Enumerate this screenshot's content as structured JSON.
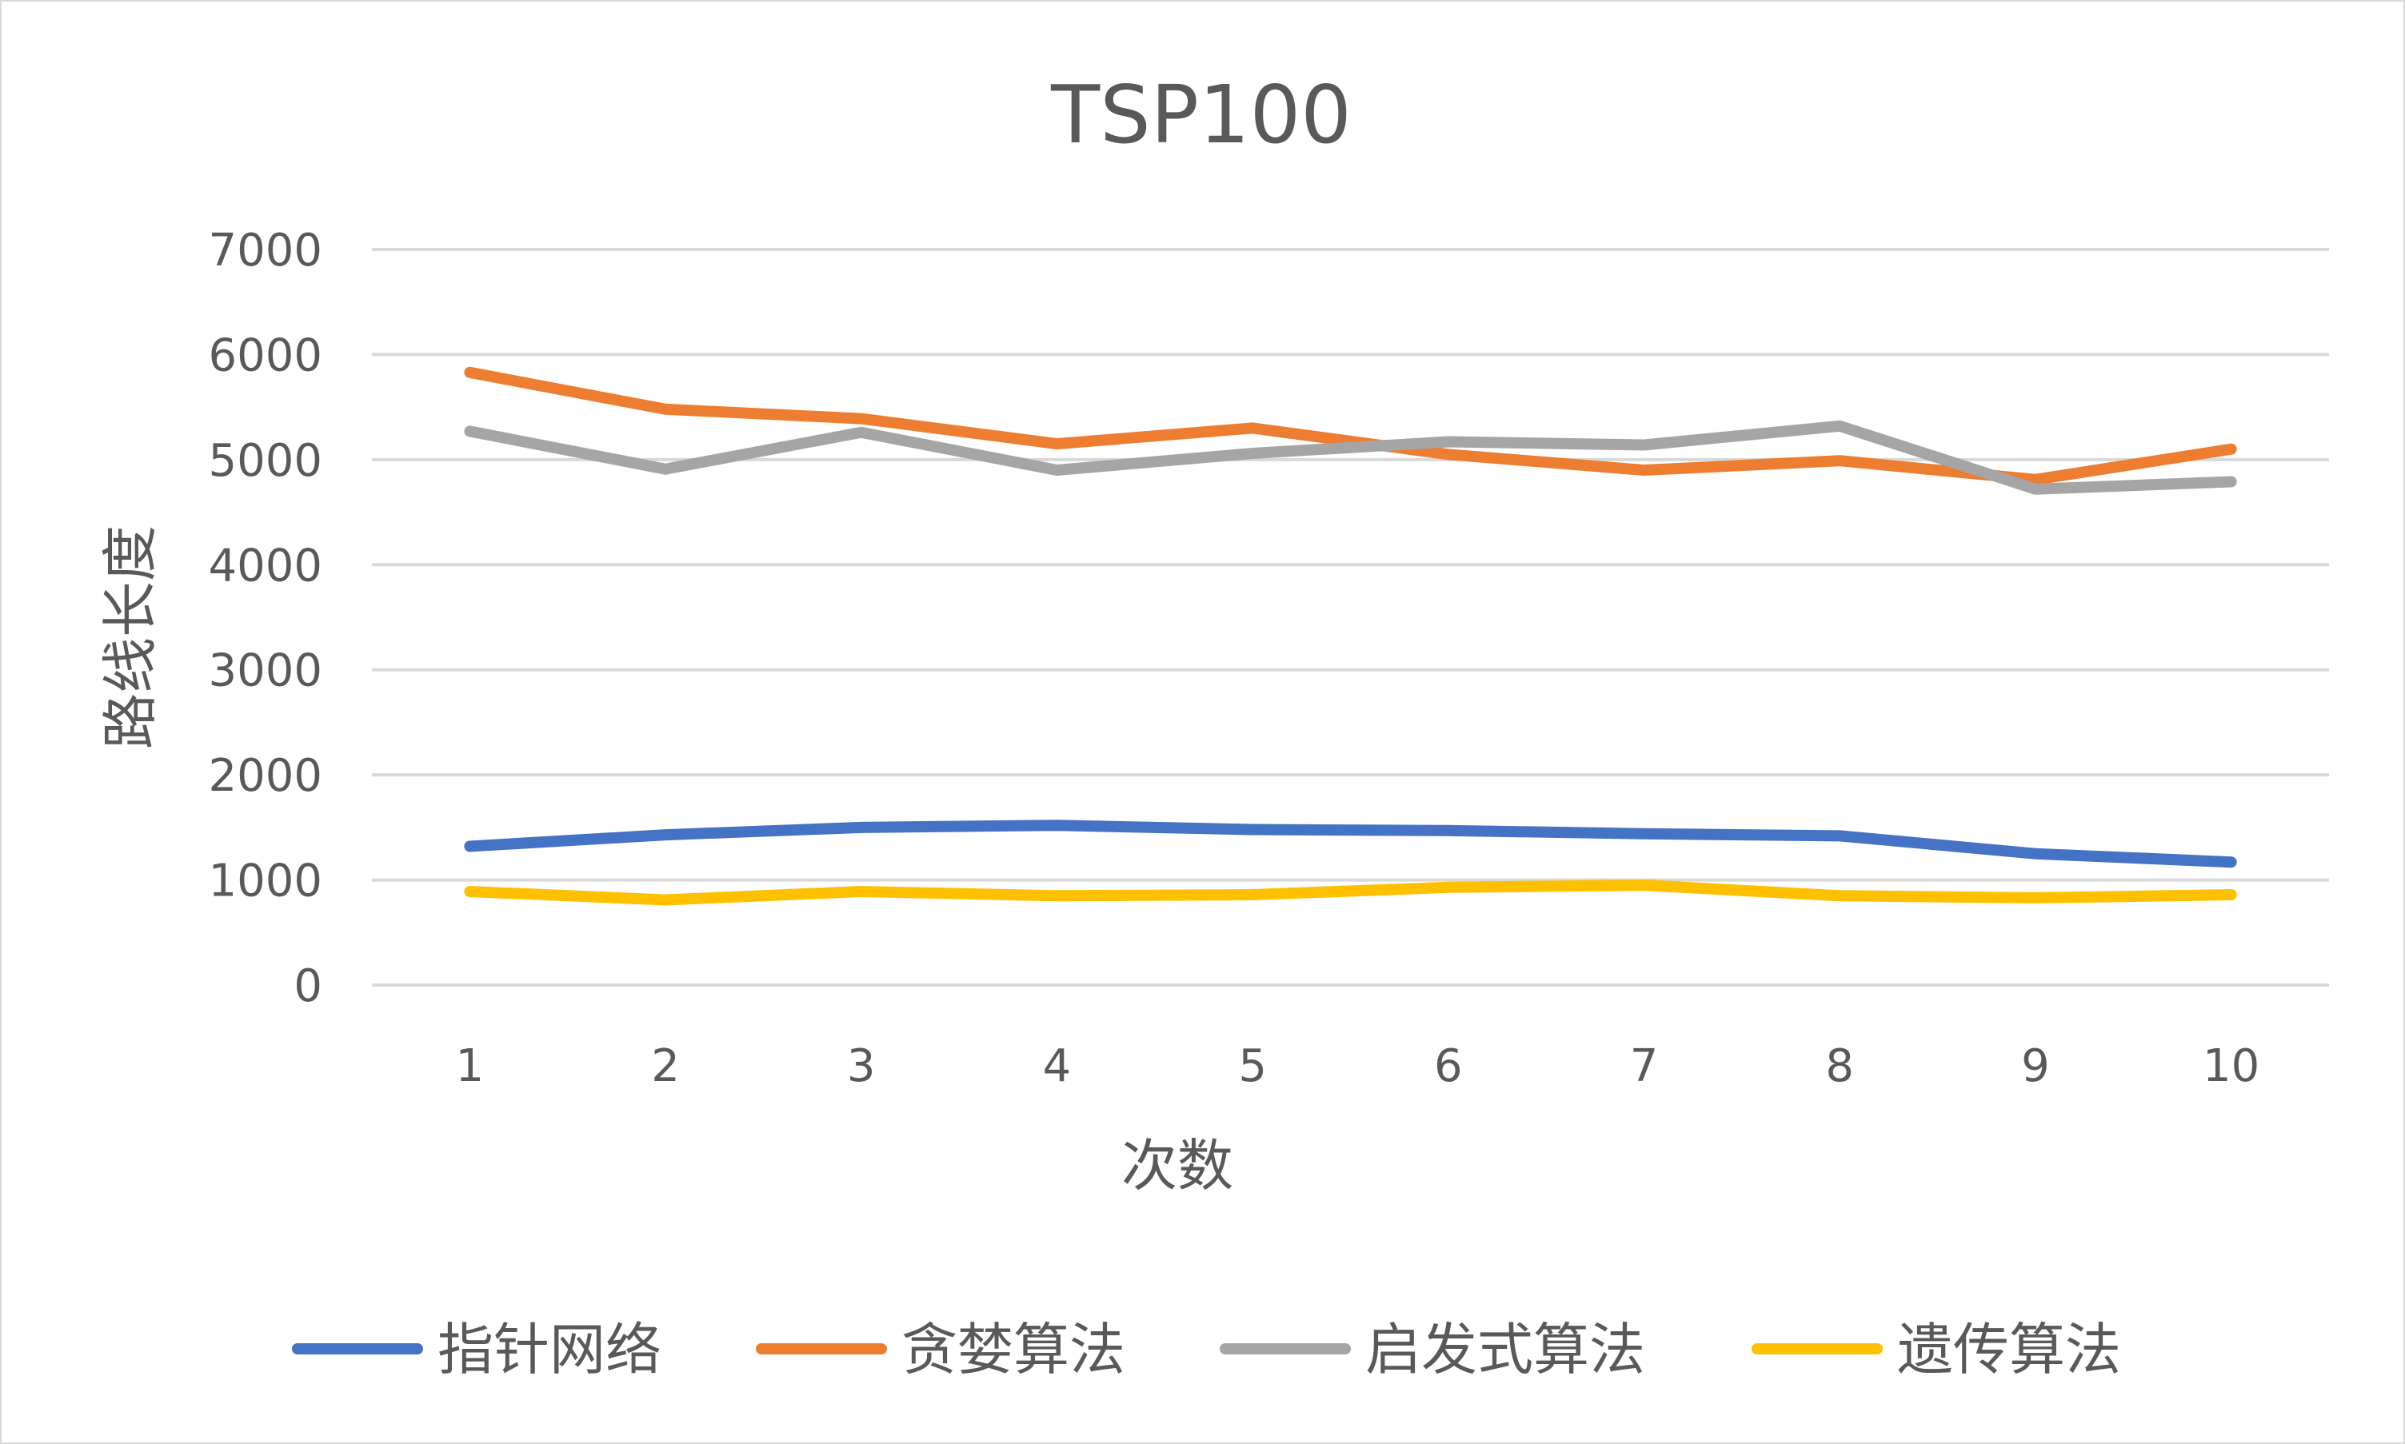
{
  "chart_data": {
    "type": "line",
    "title": "TSP100",
    "xlabel": "次数",
    "ylabel": "路线长度",
    "categories": [
      "1",
      "2",
      "3",
      "4",
      "5",
      "6",
      "7",
      "8",
      "9",
      "10"
    ],
    "ylim": [
      0,
      7000
    ],
    "yticks": [
      "0",
      "1000",
      "2000",
      "3000",
      "4000",
      "5000",
      "6000",
      "7000"
    ],
    "grid": true,
    "legend_position": "bottom",
    "series": [
      {
        "name": "指针网络",
        "color": "#4472C4",
        "values": [
          1320,
          1430,
          1500,
          1520,
          1480,
          1470,
          1440,
          1420,
          1250,
          1170
        ]
      },
      {
        "name": "贪婪算法",
        "color": "#ED7D31",
        "values": [
          5830,
          5480,
          5390,
          5150,
          5300,
          5050,
          4900,
          4990,
          4810,
          5100
        ]
      },
      {
        "name": "启发式算法",
        "color": "#A5A5A5",
        "values": [
          5270,
          4910,
          5260,
          4900,
          5060,
          5170,
          5140,
          5320,
          4720,
          4790
        ]
      },
      {
        "name": "遗传算法",
        "color": "#FFC000",
        "values": [
          890,
          810,
          890,
          850,
          860,
          930,
          950,
          850,
          830,
          860
        ]
      }
    ]
  }
}
